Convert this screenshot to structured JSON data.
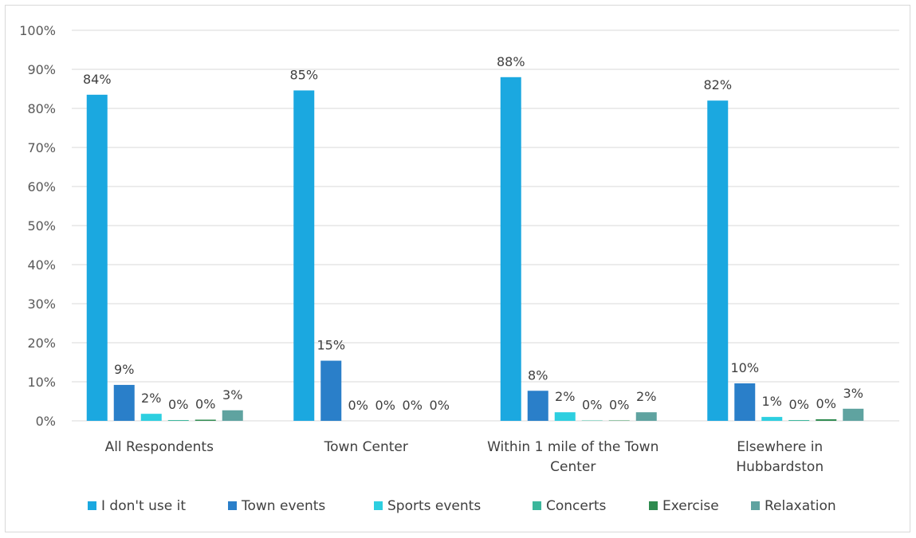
{
  "chart_data": {
    "type": "bar",
    "categories": [
      [
        "All Respondents"
      ],
      [
        "Town Center"
      ],
      [
        "Within 1 mile of the Town",
        "Center"
      ],
      [
        "Elsewhere in",
        "Hubbardston"
      ]
    ],
    "series": [
      {
        "name": "I don't use it",
        "color": "#1ba8e0",
        "values": [
          83.5,
          84.6,
          88.0,
          82.0
        ],
        "labels": [
          "84%",
          "85%",
          "88%",
          "82%"
        ]
      },
      {
        "name": "Town events",
        "color": "#2a7fc9",
        "values": [
          9.2,
          15.4,
          7.7,
          9.6
        ],
        "labels": [
          "9%",
          "15%",
          "8%",
          "10%"
        ]
      },
      {
        "name": "Sports events",
        "color": "#2dcfe0",
        "values": [
          1.8,
          0,
          2.2,
          1.0
        ],
        "labels": [
          "2%",
          "0%",
          "2%",
          "1%"
        ]
      },
      {
        "name": "Concerts",
        "color": "#3cb79c",
        "values": [
          0.2,
          0,
          0.1,
          0.2
        ],
        "labels": [
          "0%",
          "0%",
          "0%",
          "0%"
        ]
      },
      {
        "name": "Exercise",
        "color": "#2e8b4f",
        "values": [
          0.3,
          0,
          0.1,
          0.4
        ],
        "labels": [
          "0%",
          "0%",
          "0%",
          "0%"
        ]
      },
      {
        "name": "Relaxation",
        "color": "#5fa3a0",
        "values": [
          2.7,
          0,
          2.2,
          3.1
        ],
        "labels": [
          "3%",
          "0%",
          "2%",
          "3%"
        ]
      }
    ],
    "ylim": [
      0,
      100
    ],
    "yticks": [
      0,
      10,
      20,
      30,
      40,
      50,
      60,
      70,
      80,
      90,
      100
    ],
    "ytick_labels": [
      "0%",
      "10%",
      "20%",
      "30%",
      "40%",
      "50%",
      "60%",
      "70%",
      "80%",
      "90%",
      "100%"
    ],
    "grid": true,
    "legend": "bottom",
    "gridline_color": "#d9d9d9"
  }
}
